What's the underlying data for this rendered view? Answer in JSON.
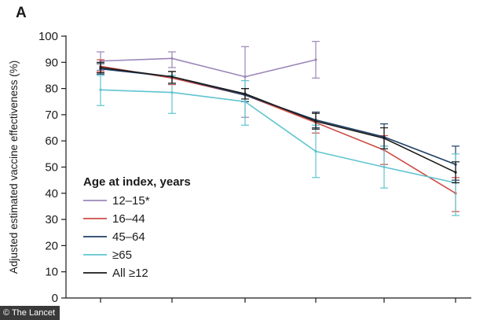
{
  "panel_label": "A",
  "credit": "© The Lancet",
  "chart_data": {
    "type": "line",
    "ylabel": "Adjusted estimated vaccine effectiveness (%)",
    "xlabel": "",
    "ylim": [
      0,
      100
    ],
    "yticks": [
      0,
      10,
      20,
      30,
      40,
      50,
      60,
      70,
      80,
      90,
      100
    ],
    "x": [
      1,
      2,
      3,
      4,
      5,
      6
    ],
    "grid": false,
    "legend": {
      "title": "Age at index, years",
      "placement": "lower-left"
    },
    "series": [
      {
        "name": "12–15*",
        "color": "#9b86b8",
        "values": [
          90.5,
          91.5,
          84.5,
          91,
          null,
          null
        ],
        "lower": [
          87,
          88,
          69,
          84,
          null,
          null
        ],
        "upper": [
          94,
          94,
          96,
          98,
          null,
          null
        ]
      },
      {
        "name": "16–44",
        "color": "#cc4c47",
        "values": [
          88.5,
          84,
          77.5,
          67,
          56.5,
          40
        ],
        "lower": [
          86.5,
          81.5,
          75,
          63,
          51,
          33
        ],
        "upper": [
          91,
          86.5,
          80,
          71,
          62,
          46
        ]
      },
      {
        "name": "45–64",
        "color": "#1f3f66",
        "values": [
          87.5,
          84.5,
          77.5,
          68,
          61.5,
          51
        ],
        "lower": [
          85.5,
          82,
          75,
          65,
          58,
          45
        ],
        "upper": [
          89.5,
          86.5,
          80,
          71,
          66.5,
          58
        ]
      },
      {
        "name": "≥65",
        "color": "#5fc4cf",
        "values": [
          79.5,
          78.5,
          75,
          56,
          50,
          44
        ],
        "lower": [
          73.5,
          70.5,
          66,
          46,
          42,
          31.5
        ],
        "upper": [
          85,
          85,
          83,
          66,
          58,
          55
        ]
      },
      {
        "name": "All ≥12",
        "color": "#1a1a1a",
        "values": [
          88,
          84.5,
          78,
          67.5,
          61,
          48
        ],
        "lower": [
          86,
          82,
          76,
          64.5,
          57,
          44
        ],
        "upper": [
          90,
          86.5,
          80,
          70.5,
          65,
          52
        ]
      }
    ]
  }
}
